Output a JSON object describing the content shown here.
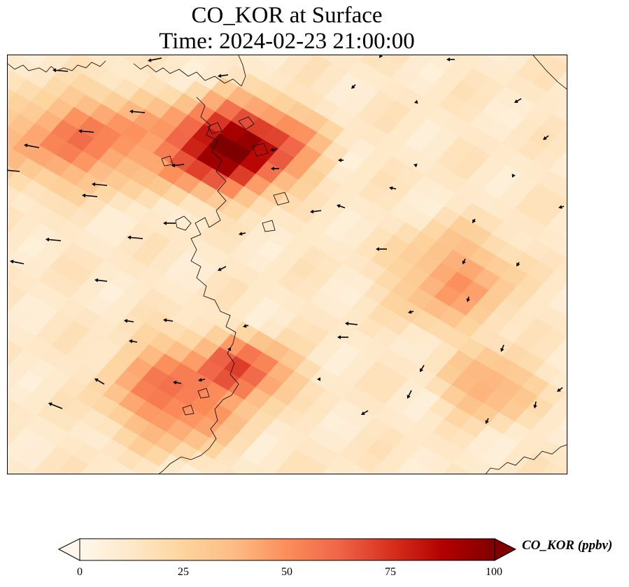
{
  "title": {
    "line1": "CO_KOR at Surface",
    "line2": "Time: 2024-02-23 21:00:00"
  },
  "colorbar": {
    "label": "CO_KOR (ppbv)",
    "ticks": [
      "0",
      "25",
      "50",
      "75",
      "100"
    ],
    "vmin": 0,
    "vmax": 100,
    "extend": "both",
    "colormap": "OrRd",
    "colors": [
      "#fff7ec",
      "#fee8c8",
      "#fdd49e",
      "#fdbb84",
      "#fc8d59",
      "#ef6548",
      "#d7301f",
      "#b30000",
      "#7f0000"
    ]
  },
  "map": {
    "field": "CO_KOR",
    "level": "Surface",
    "overlay": "wind vectors (black arrows)",
    "coastlines": true,
    "pattern": "diagonal tiled plume, max over upper-centre region",
    "hotspots": [
      {
        "region": "upper-centre",
        "value": 100
      },
      {
        "region": "lower-centre",
        "value": 70
      },
      {
        "region": "lower-left-centre",
        "value": 60
      },
      {
        "region": "upper-left",
        "value": 55
      },
      {
        "region": "right-centre",
        "value": 45
      },
      {
        "region": "right-lower",
        "value": 45
      }
    ]
  }
}
